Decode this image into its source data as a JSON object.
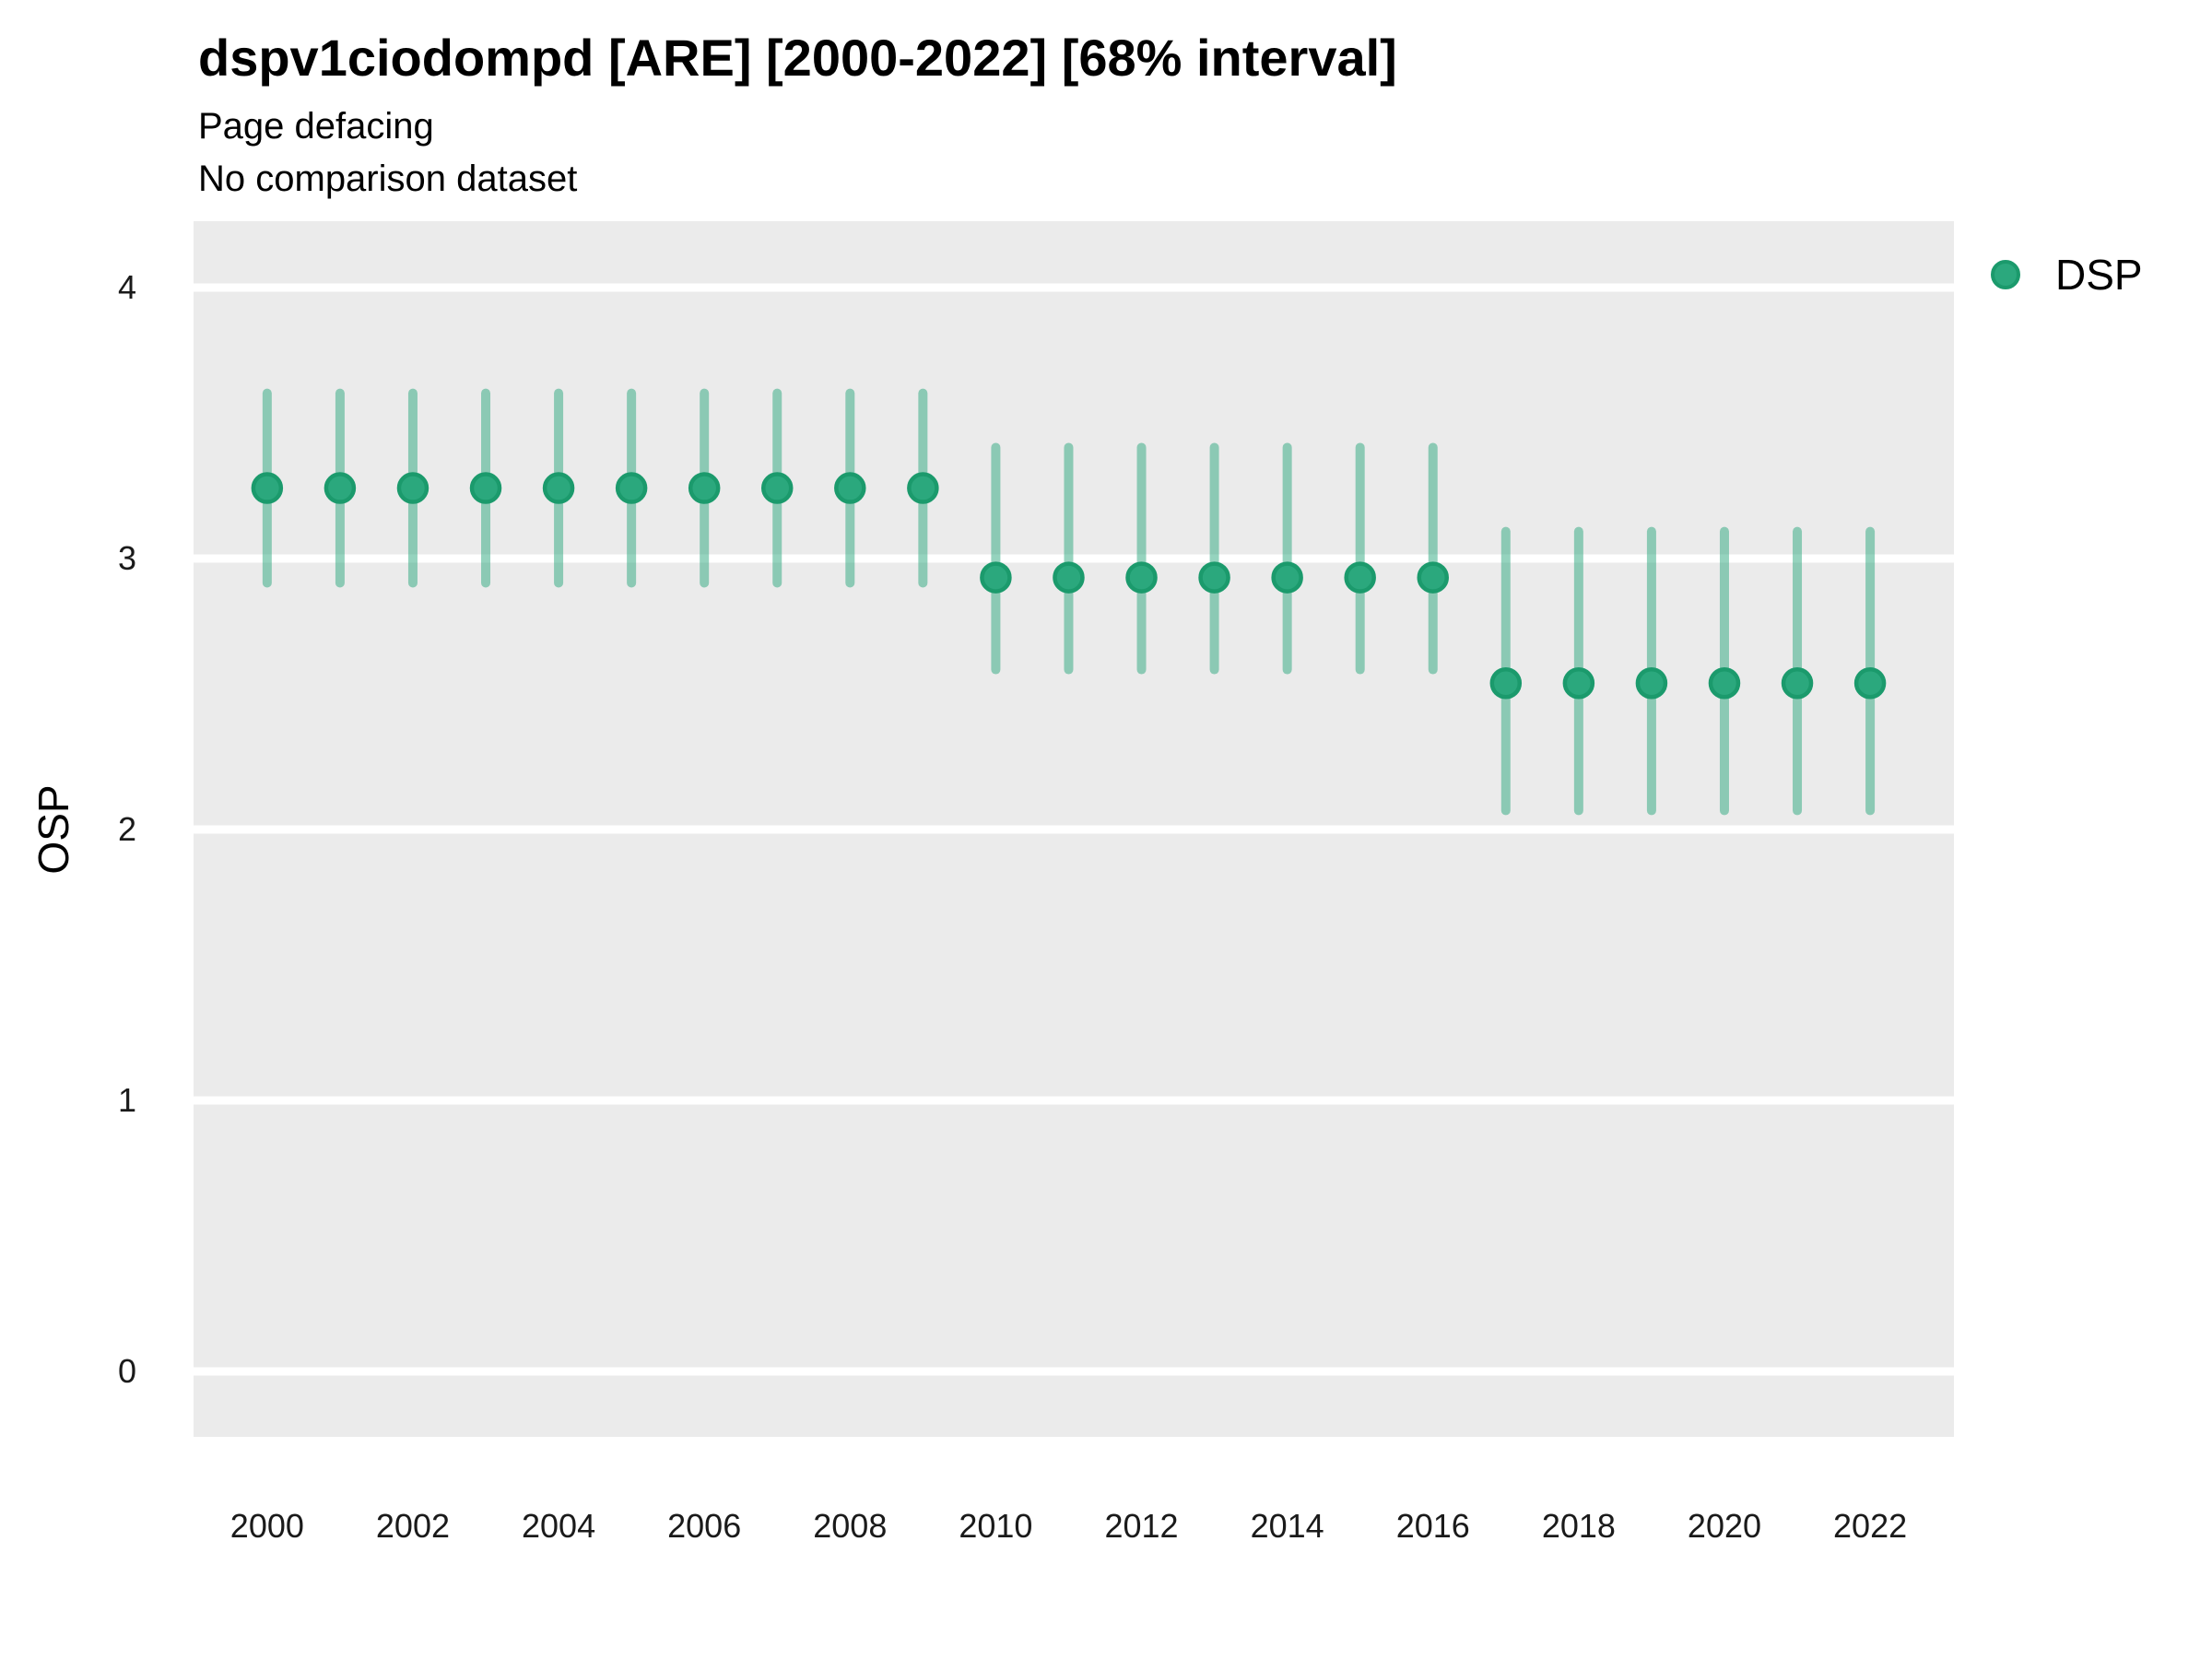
{
  "header": {
    "title": "dspv1ciodompd [ARE] [2000-2022] [68% interval]",
    "subtitle": "Page defacing",
    "subtitle2": "No comparison dataset"
  },
  "legend": {
    "label": "DSP",
    "position": "right-top"
  },
  "y_axis": {
    "label": "OSP",
    "ticks": [
      0,
      1,
      2,
      3,
      4
    ],
    "range": [
      -0.2415,
      4.2449
    ]
  },
  "x_axis": {
    "tick_labels": [
      2000,
      2002,
      2004,
      2006,
      2008,
      2010,
      2012,
      2014,
      2016,
      2018,
      2020,
      2022
    ],
    "range": [
      1998.99,
      2023.15
    ]
  },
  "colors": {
    "point_fill": "#2ba87d",
    "point_stroke": "#1b9a6c",
    "interval": "rgba(43,168,125,0.5)",
    "panel_background": "#ebebeb",
    "gridline": "#ffffff",
    "text": "#000000",
    "tick_text": "#1a1a1a"
  },
  "chart_data": {
    "type": "scatter",
    "subtype": "pointrange",
    "interval_level": "68%",
    "title": "dspv1ciodompd [ARE] [2000-2022] [68% interval]",
    "subtitle": "Page defacing",
    "note": "No comparison dataset",
    "xlabel": "",
    "ylabel": "OSP",
    "ylim": [
      -0.2415,
      4.2449
    ],
    "grid": "major-horizontal-white",
    "legend_position": "right",
    "x": [
      2000,
      2001,
      2002,
      2003,
      2004,
      2005,
      2006,
      2007,
      2008,
      2009,
      2010,
      2011,
      2012,
      2013,
      2014,
      2015,
      2016,
      2017,
      2018,
      2019,
      2020,
      2021,
      2022
    ],
    "series": [
      {
        "name": "DSP",
        "estimate": [
          3.26,
          3.26,
          3.26,
          3.26,
          3.26,
          3.26,
          3.26,
          3.26,
          3.26,
          3.26,
          2.93,
          2.93,
          2.93,
          2.93,
          2.93,
          2.93,
          2.93,
          2.54,
          2.54,
          2.54,
          2.54,
          2.54,
          2.54
        ],
        "lower": [
          2.91,
          2.91,
          2.91,
          2.91,
          2.91,
          2.91,
          2.91,
          2.91,
          2.91,
          2.91,
          2.59,
          2.59,
          2.59,
          2.59,
          2.59,
          2.59,
          2.59,
          2.07,
          2.07,
          2.07,
          2.07,
          2.07,
          2.07
        ],
        "upper": [
          3.61,
          3.61,
          3.61,
          3.61,
          3.61,
          3.61,
          3.61,
          3.61,
          3.61,
          3.61,
          3.41,
          3.41,
          3.41,
          3.41,
          3.41,
          3.41,
          3.41,
          3.1,
          3.1,
          3.1,
          3.1,
          3.1,
          3.1
        ]
      }
    ]
  }
}
